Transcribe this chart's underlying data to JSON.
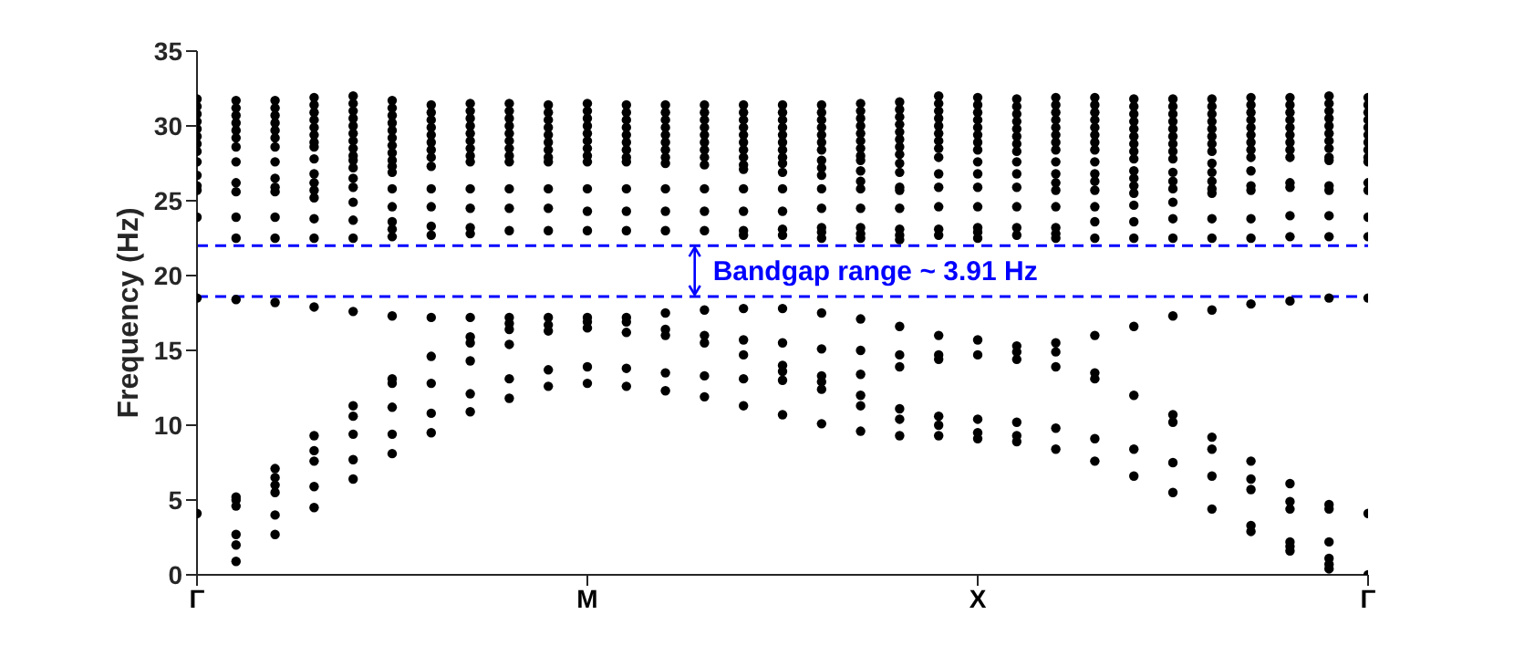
{
  "chart_data": {
    "type": "scatter",
    "ylabel": "Frequency (Hz)",
    "marker": "circle",
    "color": "#000000",
    "categories": [
      "Γ",
      null,
      null,
      null,
      null,
      null,
      null,
      null,
      null,
      null,
      "M",
      null,
      null,
      null,
      null,
      null,
      null,
      null,
      null,
      null,
      "X",
      null,
      null,
      null,
      null,
      null,
      null,
      null,
      null,
      null,
      "Γ"
    ],
    "ylim": [
      0,
      35
    ],
    "yticks": [
      0,
      5,
      10,
      15,
      20,
      25,
      30,
      35
    ],
    "ref_lines": [
      {
        "axis": "y",
        "value": 18.6,
        "color": "#0000ff",
        "line_style": "dashed"
      },
      {
        "axis": "y",
        "value": 22.0,
        "color": "#0000ff",
        "line_style": "dashed"
      }
    ],
    "annotations": [
      "Bandgap range ~ 3.91 Hz"
    ],
    "series": [
      {
        "values": [
          31.8,
          31.7,
          31.7,
          31.9,
          32.0,
          31.7,
          31.4,
          31.5,
          31.5,
          31.4,
          31.5,
          31.4,
          31.4,
          31.4,
          31.4,
          31.4,
          31.4,
          31.5,
          31.6,
          32.0,
          31.9,
          31.8,
          31.9,
          31.9,
          31.8,
          31.8,
          31.8,
          31.9,
          31.9,
          32.0,
          31.9
        ]
      },
      {
        "values": [
          31.3,
          31.2,
          31.2,
          31.4,
          31.5,
          31.2,
          30.9,
          31.0,
          31.0,
          30.9,
          31.0,
          30.9,
          30.9,
          30.9,
          30.9,
          30.9,
          30.9,
          31.0,
          31.1,
          31.5,
          31.4,
          31.3,
          31.4,
          31.4,
          31.3,
          31.3,
          31.3,
          31.4,
          31.4,
          31.5,
          31.4
        ]
      },
      {
        "values": [
          30.8,
          30.7,
          30.7,
          30.9,
          31.0,
          30.7,
          30.4,
          30.5,
          30.5,
          30.4,
          30.5,
          30.4,
          30.4,
          30.4,
          30.4,
          30.4,
          30.4,
          30.5,
          30.6,
          31.0,
          30.9,
          30.8,
          30.9,
          30.9,
          30.8,
          30.8,
          30.8,
          30.9,
          30.9,
          31.0,
          30.9
        ]
      },
      {
        "values": [
          30.3,
          30.2,
          30.2,
          30.4,
          30.5,
          30.2,
          29.9,
          30.0,
          30.0,
          29.9,
          30.0,
          29.9,
          29.9,
          29.9,
          29.9,
          29.9,
          29.9,
          30.0,
          30.1,
          30.5,
          30.4,
          30.3,
          30.4,
          30.4,
          30.3,
          30.3,
          30.3,
          30.4,
          30.4,
          30.5,
          30.4
        ]
      },
      {
        "values": [
          29.8,
          29.7,
          29.7,
          29.9,
          30.0,
          29.7,
          29.4,
          29.5,
          29.5,
          29.4,
          29.5,
          29.4,
          29.4,
          29.4,
          29.4,
          29.4,
          29.4,
          29.5,
          29.6,
          30.0,
          29.9,
          29.8,
          29.9,
          29.9,
          29.8,
          29.8,
          29.8,
          29.9,
          29.9,
          30.0,
          29.9
        ]
      },
      {
        "values": [
          29.3,
          29.2,
          29.2,
          29.4,
          29.5,
          29.2,
          28.9,
          29.0,
          29.0,
          28.9,
          29.0,
          28.9,
          28.9,
          28.9,
          28.9,
          28.9,
          28.9,
          29.0,
          29.1,
          29.5,
          29.4,
          29.3,
          29.4,
          29.4,
          29.3,
          29.3,
          29.3,
          29.4,
          29.4,
          29.5,
          29.4
        ]
      },
      {
        "values": [
          28.8,
          28.6,
          28.6,
          28.9,
          29.0,
          28.7,
          28.4,
          28.5,
          28.5,
          28.4,
          28.5,
          28.4,
          28.4,
          28.4,
          28.4,
          28.4,
          28.4,
          28.5,
          28.6,
          29.0,
          28.9,
          28.8,
          28.9,
          28.9,
          28.8,
          28.8,
          28.8,
          28.9,
          28.9,
          29.0,
          28.9
        ]
      },
      {
        "values": [
          28.3,
          27.6,
          27.6,
          28.6,
          28.5,
          28.2,
          27.9,
          28.0,
          28.0,
          27.9,
          28.0,
          27.9,
          27.9,
          27.9,
          27.9,
          27.9,
          27.7,
          28.0,
          28.1,
          28.5,
          28.4,
          28.3,
          28.4,
          28.4,
          28.3,
          28.3,
          28.3,
          28.4,
          28.4,
          28.5,
          28.4
        ]
      },
      {
        "values": [
          27.6,
          26.2,
          26.5,
          27.8,
          28.0,
          27.7,
          27.3,
          27.6,
          27.6,
          27.6,
          27.6,
          27.6,
          27.5,
          27.4,
          27.4,
          27.5,
          27.2,
          27.7,
          27.5,
          27.9,
          27.6,
          27.6,
          27.6,
          27.6,
          27.8,
          27.8,
          27.5,
          27.9,
          27.9,
          27.9,
          27.9
        ]
      },
      {
        "values": [
          26.7,
          25.6,
          25.9,
          26.8,
          27.7,
          27.3,
          25.8,
          25.8,
          25.8,
          25.8,
          25.8,
          25.8,
          25.8,
          25.8,
          27.1,
          26.9,
          26.7,
          27.0,
          26.9,
          26.8,
          26.8,
          26.8,
          26.8,
          26.8,
          27.0,
          26.9,
          26.9,
          27.0,
          26.2,
          27.7,
          27.6
        ]
      },
      {
        "values": [
          26.0,
          23.9,
          25.6,
          26.2,
          27.2,
          26.9,
          24.6,
          24.5,
          24.5,
          24.5,
          24.3,
          24.3,
          24.3,
          24.3,
          25.8,
          25.8,
          25.8,
          26.3,
          25.9,
          25.9,
          25.9,
          25.9,
          26.2,
          26.3,
          26.5,
          26.3,
          26.3,
          26.0,
          25.9,
          26.0,
          26.2
        ]
      },
      {
        "values": [
          25.7,
          22.5,
          23.9,
          25.7,
          26.5,
          25.8,
          23.3,
          23.2,
          23.0,
          23.0,
          23.0,
          23.0,
          23.0,
          23.0,
          24.3,
          24.3,
          24.5,
          25.8,
          25.7,
          24.6,
          24.6,
          24.6,
          25.7,
          25.7,
          26.0,
          25.8,
          25.8,
          25.7,
          24.0,
          25.7,
          25.7
        ]
      },
      {
        "values": [
          23.9,
          18.4,
          22.5,
          25.2,
          25.9,
          24.6,
          22.7,
          22.8,
          17.2,
          17.2,
          17.2,
          17.2,
          17.5,
          17.7,
          23.0,
          23.1,
          23.2,
          24.5,
          24.5,
          23.1,
          23.2,
          23.2,
          24.6,
          24.6,
          25.5,
          24.9,
          25.5,
          23.8,
          22.6,
          24.0,
          23.9
        ]
      },
      {
        "values": [
          18.5,
          5.2,
          18.2,
          23.8,
          24.9,
          23.6,
          17.2,
          17.2,
          16.8,
          16.7,
          16.9,
          16.9,
          16.4,
          16.0,
          22.7,
          22.7,
          22.9,
          23.2,
          23.1,
          22.7,
          22.9,
          22.7,
          23.2,
          23.6,
          24.7,
          23.8,
          23.8,
          22.5,
          18.3,
          22.6,
          22.6
        ]
      },
      {
        "values": [
          4.1,
          5.0,
          7.1,
          22.5,
          23.7,
          23.1,
          14.6,
          15.9,
          16.4,
          16.3,
          16.5,
          16.2,
          16.0,
          15.5,
          17.8,
          17.8,
          22.5,
          22.8,
          22.7,
          16.0,
          22.5,
          15.3,
          22.8,
          22.5,
          23.6,
          22.5,
          22.5,
          18.1,
          6.1,
          18.5,
          18.5
        ]
      },
      {
        "values": [
          null,
          4.6,
          6.5,
          17.9,
          22.5,
          22.6,
          12.8,
          15.5,
          15.4,
          13.7,
          13.9,
          13.8,
          13.5,
          13.3,
          15.7,
          15.5,
          17.5,
          22.5,
          22.4,
          14.7,
          15.7,
          14.9,
          22.5,
          16.0,
          22.5,
          17.3,
          17.7,
          7.6,
          4.9,
          4.7,
          4.1
        ]
      },
      {
        "values": [
          null,
          2.7,
          6.0,
          9.3,
          17.6,
          17.3,
          10.8,
          14.3,
          13.1,
          12.6,
          12.8,
          12.6,
          12.3,
          11.9,
          14.7,
          14.0,
          15.1,
          17.1,
          16.6,
          14.4,
          14.7,
          14.4,
          15.5,
          13.5,
          16.6,
          10.7,
          9.2,
          6.4,
          4.4,
          4.4,
          0
        ]
      },
      {
        "values": [
          null,
          2.0,
          5.5,
          8.3,
          11.3,
          13.1,
          9.5,
          12.1,
          11.8,
          null,
          null,
          null,
          null,
          null,
          13.1,
          13.6,
          13.3,
          15.0,
          14.7,
          10.6,
          10.4,
          10.2,
          14.9,
          13.1,
          12.0,
          10.2,
          8.4,
          5.7,
          2.2,
          2.2,
          null
        ]
      },
      {
        "values": [
          null,
          0.9,
          4.0,
          7.6,
          10.6,
          12.8,
          null,
          10.9,
          null,
          null,
          null,
          null,
          null,
          null,
          11.3,
          13.0,
          12.9,
          13.4,
          13.9,
          10.0,
          9.5,
          9.3,
          13.9,
          9.1,
          8.4,
          7.5,
          6.6,
          3.3,
          1.9,
          1.1,
          null
        ]
      },
      {
        "values": [
          null,
          null,
          2.7,
          5.9,
          9.4,
          11.2,
          null,
          null,
          null,
          null,
          null,
          null,
          null,
          null,
          null,
          10.7,
          12.4,
          12.0,
          11.1,
          9.3,
          9.1,
          8.9,
          9.8,
          7.6,
          6.6,
          5.5,
          4.4,
          2.9,
          1.6,
          0.7,
          null
        ]
      },
      {
        "values": [
          null,
          null,
          null,
          4.5,
          7.7,
          9.4,
          null,
          null,
          null,
          null,
          null,
          null,
          null,
          null,
          null,
          null,
          10.1,
          11.3,
          10.4,
          null,
          null,
          null,
          8.4,
          null,
          null,
          null,
          null,
          null,
          null,
          0.4,
          null
        ]
      },
      {
        "values": [
          null,
          null,
          null,
          null,
          6.4,
          8.1,
          null,
          null,
          null,
          null,
          null,
          null,
          null,
          null,
          null,
          null,
          null,
          9.6,
          9.3,
          null,
          null,
          null,
          null,
          null,
          null,
          null,
          null,
          null,
          null,
          null,
          null
        ]
      }
    ]
  }
}
